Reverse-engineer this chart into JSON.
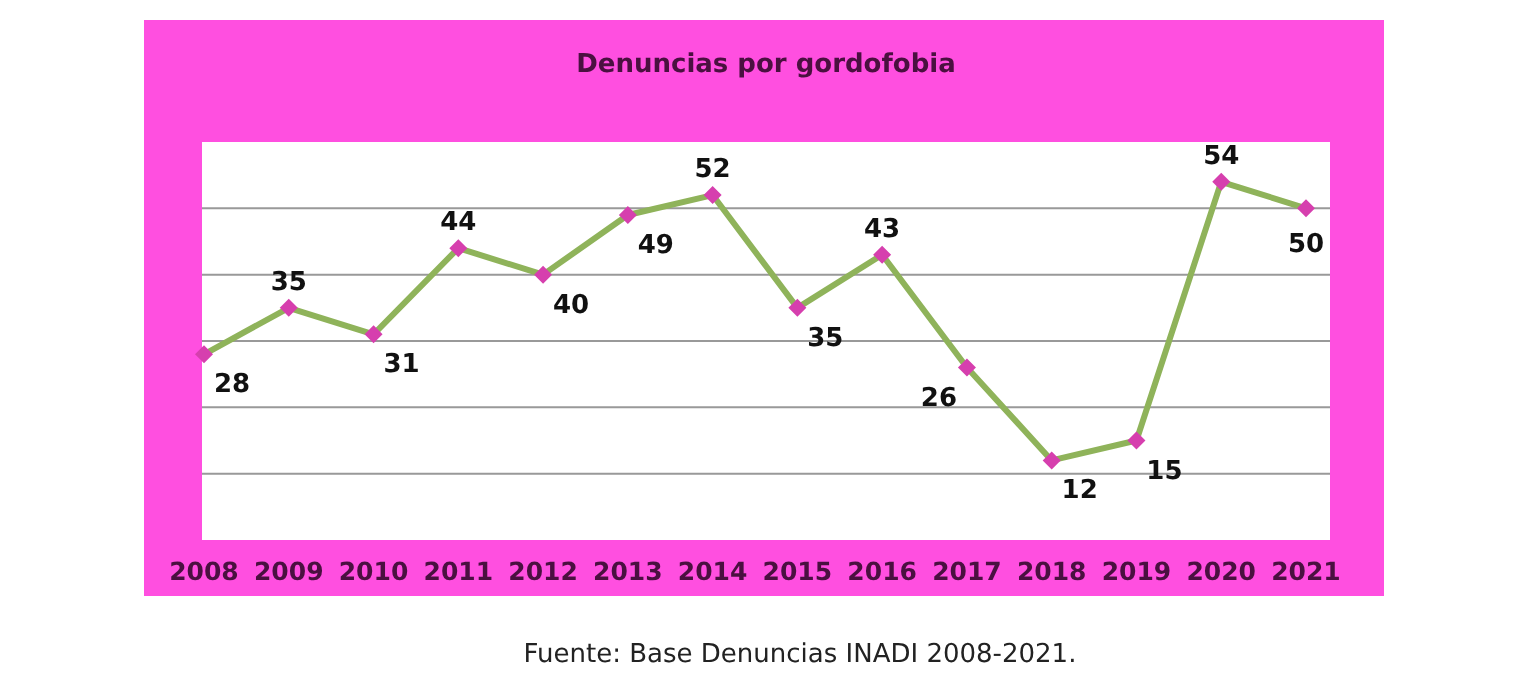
{
  "chart_data": {
    "type": "line",
    "title": "Denuncias por gordofobia",
    "categories": [
      "2008",
      "2009",
      "2010",
      "2011",
      "2012",
      "2013",
      "2014",
      "2015",
      "2016",
      "2017",
      "2018",
      "2019",
      "2020",
      "2021"
    ],
    "series": [
      {
        "color": "#8fb35a",
        "values": [
          28,
          35,
          31,
          44,
          40,
          49,
          52,
          35,
          43,
          26,
          12,
          15,
          54,
          50
        ]
      }
    ],
    "ylim": [
      0,
      60
    ],
    "yticks": [
      {
        "value": 10,
        "label": null
      },
      {
        "value": 20,
        "label": null
      },
      {
        "value": 30,
        "label": null
      },
      {
        "value": 40,
        "label": null
      },
      {
        "value": 50,
        "label": null
      }
    ],
    "tick_labels": "x",
    "grid": "y",
    "marker": "diamond",
    "line_style": "solid",
    "data_labels": true,
    "annotations": [
      "Fuente: Base Denuncias INADI 2008-2021."
    ]
  }
}
